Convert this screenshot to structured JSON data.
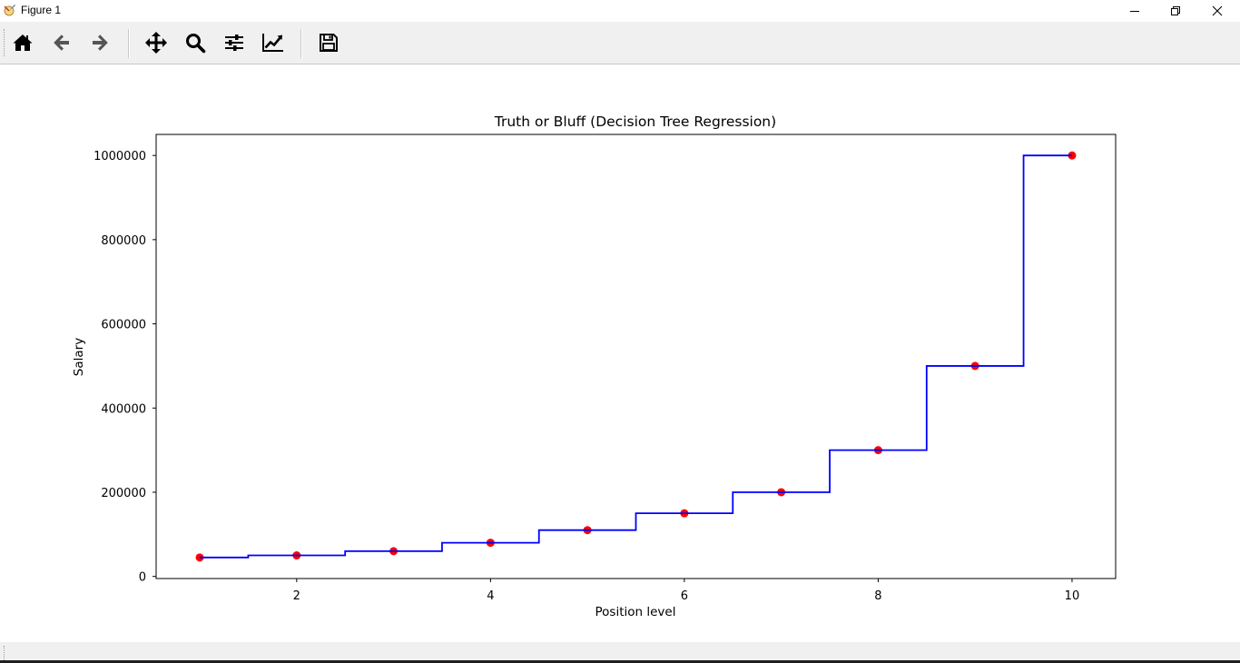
{
  "window": {
    "title": "Figure 1",
    "icon": "matplotlib-figure-icon"
  },
  "toolbar": {
    "buttons": [
      {
        "name": "home-icon",
        "tooltip": "Reset original view"
      },
      {
        "name": "arrow-left-icon",
        "tooltip": "Back to previous view"
      },
      {
        "name": "arrow-right-icon",
        "tooltip": "Forward to next view"
      },
      {
        "name": "move-icon",
        "tooltip": "Pan axes"
      },
      {
        "name": "search-icon",
        "tooltip": "Zoom to rectangle"
      },
      {
        "name": "sliders-icon",
        "tooltip": "Configure subplots"
      },
      {
        "name": "line-chart-icon",
        "tooltip": "Edit axis, curve and image parameters"
      },
      {
        "name": "save-icon",
        "tooltip": "Save the figure"
      }
    ]
  },
  "chart_data": {
    "type": "scatter",
    "title": "Truth or Bluff (Decision Tree Regression)",
    "xlabel": "Position level",
    "ylabel": "Salary",
    "xlim": [
      0.55,
      10.45
    ],
    "ylim": [
      -5000,
      1050000
    ],
    "xticks": [
      2,
      4,
      6,
      8,
      10
    ],
    "xtick_labels": [
      "2",
      "4",
      "6",
      "8",
      "10"
    ],
    "yticks": [
      0,
      200000,
      400000,
      600000,
      800000,
      1000000
    ],
    "ytick_labels": [
      "0",
      "200000",
      "400000",
      "600000",
      "800000",
      "1000000"
    ],
    "grid": false,
    "series": [
      {
        "type": "scatter",
        "color": "#ff0000",
        "x": [
          1,
          2,
          3,
          4,
          5,
          6,
          7,
          8,
          9,
          10
        ],
        "y": [
          45000,
          50000,
          60000,
          80000,
          110000,
          150000,
          200000,
          300000,
          500000,
          1000000
        ]
      },
      {
        "type": "step",
        "color": "#0000ff",
        "x_start": 1,
        "x_end": 10,
        "breakpoints": [
          1.5,
          2.5,
          3.5,
          4.5,
          5.5,
          6.5,
          7.5,
          8.5,
          9.5
        ],
        "levels": [
          45000,
          50000,
          60000,
          80000,
          110000,
          150000,
          200000,
          300000,
          500000,
          1000000
        ]
      }
    ]
  }
}
